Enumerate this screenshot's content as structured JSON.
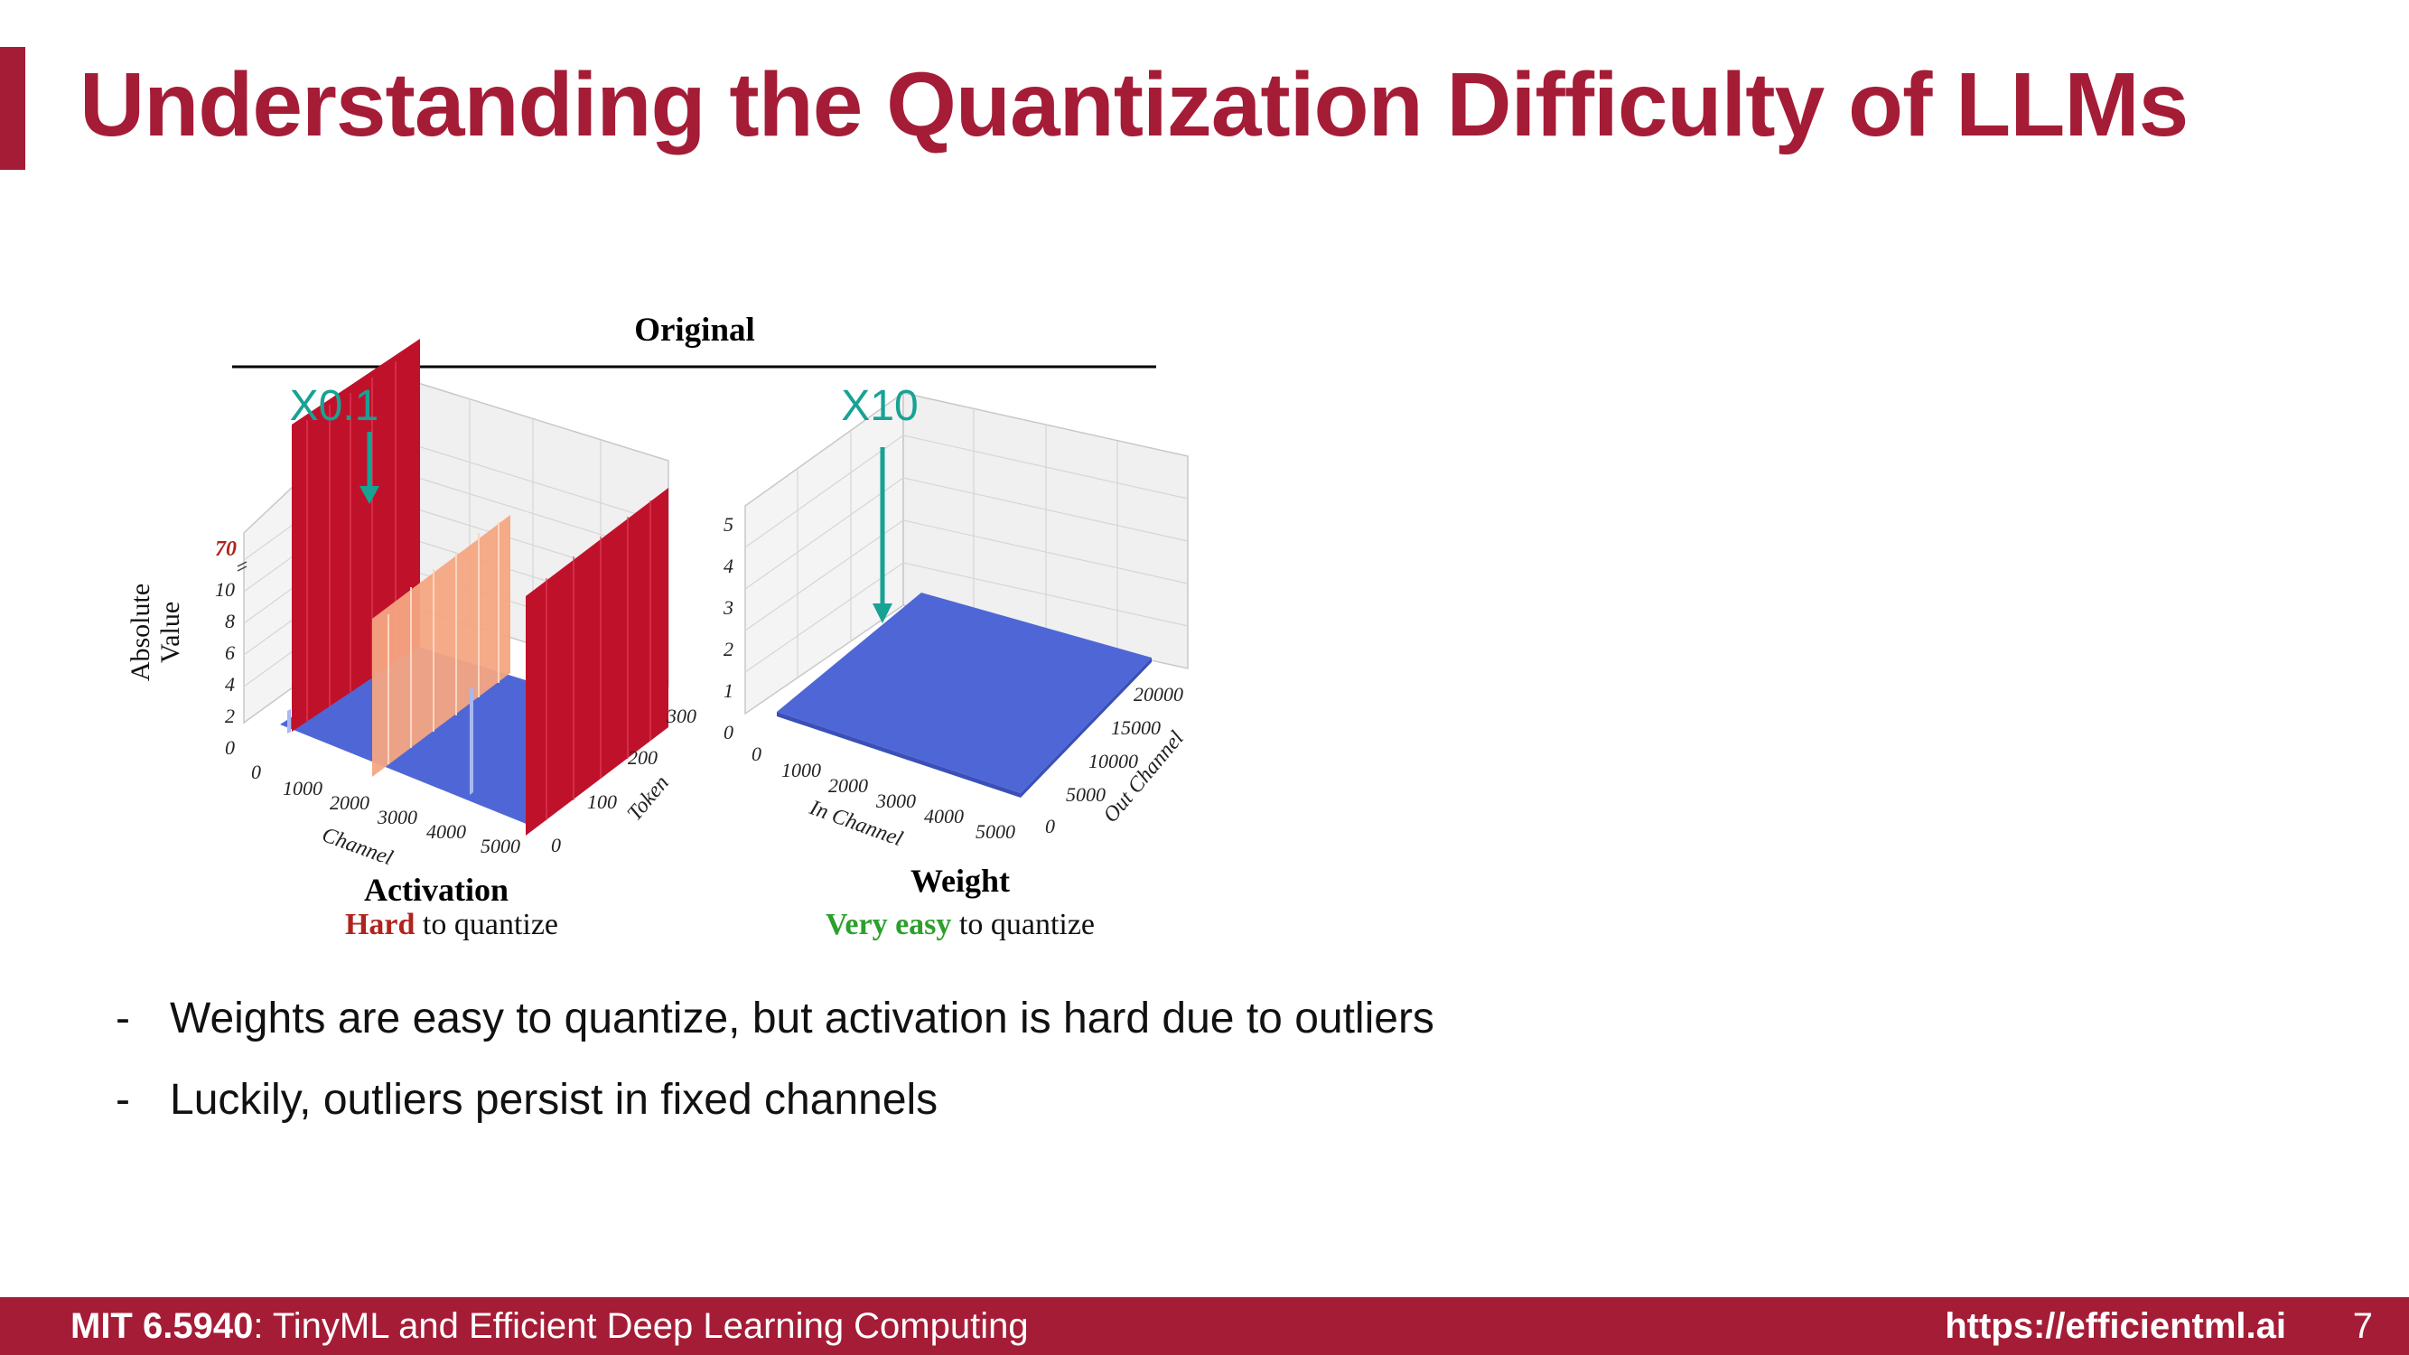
{
  "slide": {
    "title": "Understanding the Quantization Difficulty of LLMs",
    "bullets": [
      "Weights are easy to quantize, but activation is hard due to outliers",
      "Luckily, outliers persist in fixed channels"
    ],
    "footer": {
      "course_code": "MIT 6.5940",
      "course_name": ": TinyML and Efficient Deep Learning Computing",
      "url": "https://efficientml.ai",
      "page_number": "7"
    }
  },
  "figure": {
    "header": "Original",
    "colors": {
      "accent": "#a51c36",
      "outlier": "#c0112b",
      "surface": "#4f67d6",
      "mid_outlier": "#f4a582",
      "hard": "#b0231c",
      "easy": "#2ca02c",
      "arrow": "#17a294"
    }
  },
  "chart_data": [
    {
      "type": "surface3d",
      "title": "Activation",
      "subtitle_em": "Hard",
      "subtitle_rest": " to quantize",
      "scale_label": "X0.1",
      "zlabel_line1": "Absolute",
      "zlabel_line2": "Value",
      "xlabel": "Channel",
      "ylabel": "Token",
      "x_ticks": [
        "0",
        "1000",
        "2000",
        "3000",
        "4000",
        "5000"
      ],
      "y_ticks": [
        "0",
        "100",
        "200",
        "300"
      ],
      "z_ticks": [
        "0",
        "2",
        "4",
        "6",
        "8",
        "10"
      ],
      "z_break_label": "70",
      "xlim": [
        0,
        5000
      ],
      "ylim": [
        0,
        300
      ],
      "zlim": [
        0,
        70
      ],
      "baseline_value": 1,
      "outlier_channels": [
        {
          "channel": 600,
          "peak": 70,
          "color": "outlier"
        },
        {
          "channel": 2000,
          "peak": 10,
          "color": "mid_outlier"
        },
        {
          "channel": 4800,
          "peak": 70,
          "color": "outlier"
        }
      ]
    },
    {
      "type": "surface3d",
      "title": "Weight",
      "subtitle_em": "Very easy",
      "subtitle_rest": " to quantize",
      "scale_label": "X10",
      "xlabel": "In Channel",
      "ylabel": "Out Channel",
      "x_ticks": [
        "0",
        "1000",
        "2000",
        "3000",
        "4000",
        "5000"
      ],
      "y_ticks": [
        "0",
        "5000",
        "10000",
        "15000",
        "20000"
      ],
      "z_ticks": [
        "0",
        "1",
        "2",
        "3",
        "4",
        "5"
      ],
      "xlim": [
        0,
        5000
      ],
      "ylim": [
        0,
        20000
      ],
      "zlim": [
        0,
        5
      ],
      "surface_value": 0.4
    }
  ]
}
